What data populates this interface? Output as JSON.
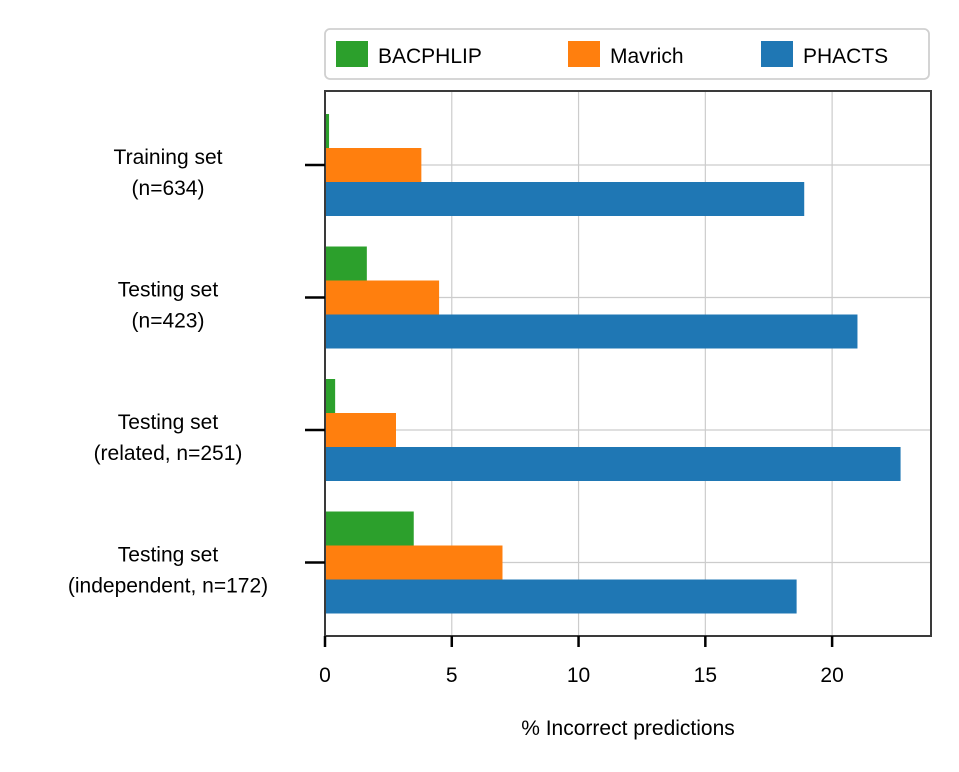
{
  "chart_data": {
    "type": "bar",
    "orientation": "horizontal",
    "categories": [
      [
        "Training set",
        "(n=634)"
      ],
      [
        "Testing set",
        "(n=423)"
      ],
      [
        "Testing set",
        "(related, n=251)"
      ],
      [
        "Testing set",
        "(independent, n=172)"
      ]
    ],
    "series": [
      {
        "name": "BACPHLIP",
        "color": "#2ca02c",
        "values": [
          0.16,
          1.65,
          0.4,
          3.5
        ]
      },
      {
        "name": "Mavrich",
        "color": "#ff7f0e",
        "values": [
          3.8,
          4.5,
          2.8,
          7.0
        ]
      },
      {
        "name": "PHACTS",
        "color": "#1f77b4",
        "values": [
          18.9,
          21.0,
          22.7,
          18.6
        ]
      }
    ],
    "xlabel": "% Incorrect predictions",
    "ylabel": "",
    "title": "",
    "xlim": [
      0,
      23.9
    ],
    "xticks": [
      0,
      5,
      10,
      15,
      20
    ],
    "grid": true,
    "legend_position": "top"
  }
}
